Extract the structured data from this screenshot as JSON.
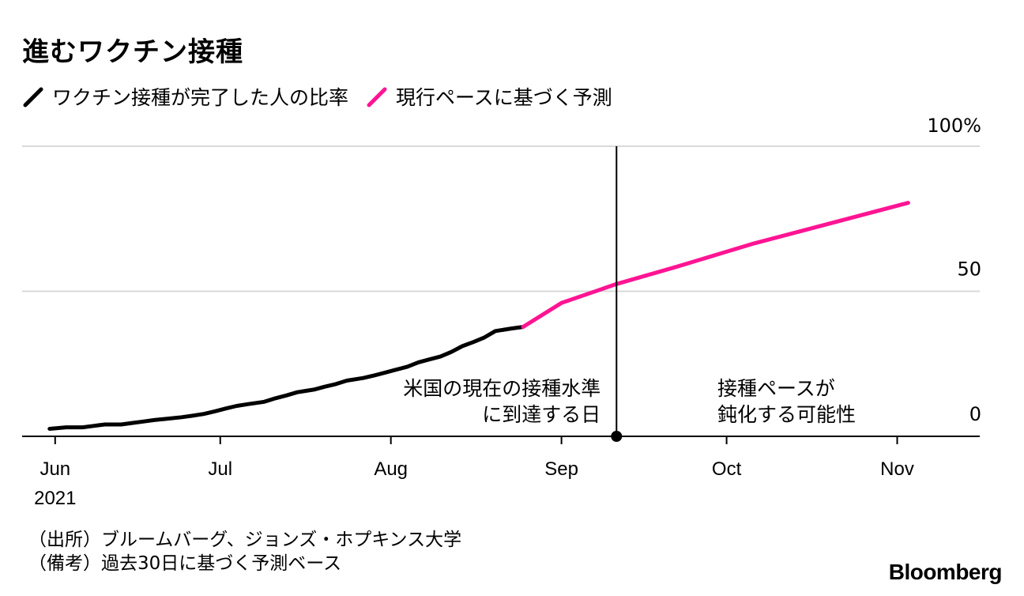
{
  "title": "進むワクチン接種",
  "legend": [
    {
      "label": "ワクチン接種が完了した人の比率",
      "color": "#000000"
    },
    {
      "label": "現行ペースに基づく予測",
      "color": "#ff1493"
    }
  ],
  "chart_data": {
    "type": "line",
    "y_ticks": [
      {
        "value": 100,
        "label": "100%"
      },
      {
        "value": 50,
        "label": "50"
      },
      {
        "value": 0,
        "label": "0"
      }
    ],
    "ylim": [
      0,
      100
    ],
    "x_ticks": [
      {
        "date": "2021-06-01",
        "label": "Jun"
      },
      {
        "date": "2021-07-01",
        "label": "Jul"
      },
      {
        "date": "2021-08-01",
        "label": "Aug"
      },
      {
        "date": "2021-09-01",
        "label": "Sep"
      },
      {
        "date": "2021-10-01",
        "label": "Oct"
      },
      {
        "date": "2021-11-01",
        "label": "Nov"
      }
    ],
    "year_label": "2021",
    "xlim": [
      "2021-05-26",
      "2021-11-16"
    ],
    "series": [
      {
        "name": "ワクチン接種が完了した人の比率",
        "color": "#000000",
        "points": [
          [
            "2021-05-31",
            2.6
          ],
          [
            "2021-06-03",
            3.1
          ],
          [
            "2021-06-06",
            3.1
          ],
          [
            "2021-06-08",
            3.6
          ],
          [
            "2021-06-10",
            4.1
          ],
          [
            "2021-06-13",
            4.1
          ],
          [
            "2021-06-15",
            4.6
          ],
          [
            "2021-06-17",
            5.1
          ],
          [
            "2021-06-19",
            5.6
          ],
          [
            "2021-06-21",
            6.0
          ],
          [
            "2021-06-24",
            6.6
          ],
          [
            "2021-06-26",
            7.1
          ],
          [
            "2021-06-28",
            7.7
          ],
          [
            "2021-06-30",
            8.6
          ],
          [
            "2021-07-02",
            9.6
          ],
          [
            "2021-07-04",
            10.5
          ],
          [
            "2021-07-06",
            11.1
          ],
          [
            "2021-07-09",
            11.9
          ],
          [
            "2021-07-11",
            13.1
          ],
          [
            "2021-07-13",
            14.1
          ],
          [
            "2021-07-15",
            15.2
          ],
          [
            "2021-07-18",
            16.1
          ],
          [
            "2021-07-20",
            17.1
          ],
          [
            "2021-07-22",
            18.0
          ],
          [
            "2021-07-24",
            19.2
          ],
          [
            "2021-07-27",
            20.1
          ],
          [
            "2021-07-29",
            21.0
          ],
          [
            "2021-07-31",
            22.0
          ],
          [
            "2021-08-02",
            23.0
          ],
          [
            "2021-08-04",
            24.0
          ],
          [
            "2021-08-06",
            25.5
          ],
          [
            "2021-08-08",
            26.5
          ],
          [
            "2021-08-10",
            27.5
          ],
          [
            "2021-08-12",
            29.1
          ],
          [
            "2021-08-14",
            31.1
          ],
          [
            "2021-08-16",
            32.5
          ],
          [
            "2021-08-18",
            34.1
          ],
          [
            "2021-08-20",
            36.3
          ],
          [
            "2021-08-23",
            37.2
          ],
          [
            "2021-08-25",
            37.7
          ]
        ]
      },
      {
        "name": "現行ペースに基づく予測",
        "color": "#ff1493",
        "points": [
          [
            "2021-08-25",
            37.7
          ],
          [
            "2021-09-01",
            46.0
          ],
          [
            "2021-09-11",
            52.5
          ],
          [
            "2021-09-22",
            58.5
          ],
          [
            "2021-10-06",
            66.5
          ],
          [
            "2021-10-14",
            70.5
          ],
          [
            "2021-11-03",
            80.5
          ]
        ]
      }
    ],
    "marker": {
      "date": "2021-09-11"
    },
    "annotations": [
      {
        "id": "reach",
        "lines": [
          "米国の現在の接種水準",
          "に到達する日"
        ]
      },
      {
        "id": "slow",
        "lines": [
          "接種ペースが",
          "鈍化する可能性"
        ]
      }
    ]
  },
  "footer": {
    "source": "（出所）ブルームバーグ、ジョンズ・ホプキンス大学",
    "note": "（備考）過去30日に基づく予測ベース"
  },
  "brand": "Bloomberg"
}
